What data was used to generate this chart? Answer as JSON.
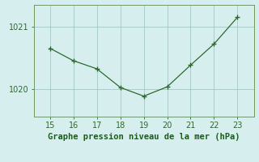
{
  "x": [
    15,
    16,
    17,
    18,
    19,
    20,
    21,
    22,
    23
  ],
  "y": [
    1020.65,
    1020.45,
    1020.32,
    1020.02,
    1019.88,
    1020.03,
    1020.38,
    1020.72,
    1021.15
  ],
  "line_color": "#2d6a2d",
  "marker_color": "#2d6a2d",
  "bg_color": "#d6eeee",
  "grid_color": "#a0c8c8",
  "xlabel": "Graphe pression niveau de la mer (hPa)",
  "xlabel_color": "#1a5e1a",
  "xlabel_fontsize": 7.5,
  "tick_color": "#2d6a2d",
  "tick_fontsize": 7,
  "ylim": [
    1019.55,
    1021.35
  ],
  "yticks": [
    1020,
    1021
  ],
  "xticks": [
    15,
    16,
    17,
    18,
    19,
    20,
    21,
    22,
    23
  ],
  "xlim": [
    14.3,
    23.7
  ],
  "spine_color": "#6a9a6a"
}
